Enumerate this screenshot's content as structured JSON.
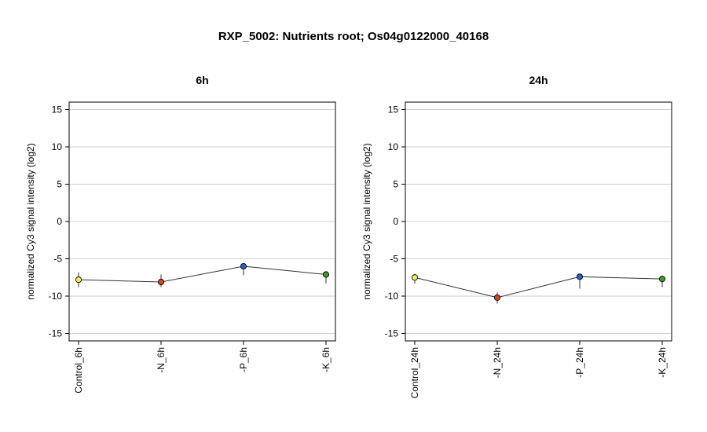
{
  "title": "RXP_5002: Nutrients root; Os04g0122000_40168",
  "chart_data": [
    {
      "type": "line",
      "title": "6h",
      "ylabel": "normalized Cy3 signal intensity (log2)",
      "ylim": [
        -16,
        16
      ],
      "yticks": [
        15,
        10,
        5,
        0,
        -5,
        -10,
        -15
      ],
      "grid": true,
      "categories": [
        "Control_6h",
        "-N_6h",
        "-P_6h",
        "-K_6h"
      ],
      "values": [
        -7.8,
        -8.1,
        -6.0,
        -7.1
      ],
      "error_low": [
        -8.8,
        -8.8,
        -7.2,
        -8.3
      ],
      "error_high": [
        -6.8,
        -7.1,
        -5.9,
        -6.9
      ],
      "point_colors": [
        "#f2ee5a",
        "#e0401f",
        "#2a5fd0",
        "#3f9a28"
      ]
    },
    {
      "type": "line",
      "title": "24h",
      "ylabel": "normalized Cy3 signal intensity (log2)",
      "ylim": [
        -16,
        16
      ],
      "yticks": [
        15,
        10,
        5,
        0,
        -5,
        -10,
        -15
      ],
      "grid": true,
      "categories": [
        "Control_24h",
        "-N_24h",
        "-P_24h",
        "-K_24h"
      ],
      "values": [
        -7.5,
        -10.2,
        -7.4,
        -7.7
      ],
      "error_low": [
        -8.3,
        -11.0,
        -9.0,
        -8.8
      ],
      "error_high": [
        -7.0,
        -9.5,
        -7.3,
        -7.5
      ],
      "point_colors": [
        "#f2ee5a",
        "#e0401f",
        "#2a5fd0",
        "#3f9a28"
      ]
    }
  ]
}
